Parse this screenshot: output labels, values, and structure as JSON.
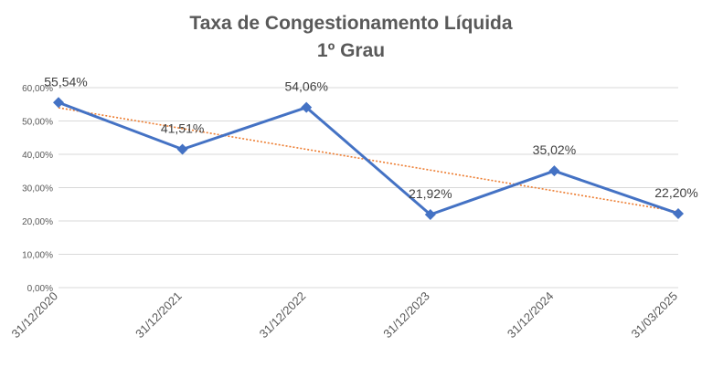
{
  "chart_data": {
    "type": "line",
    "title": "Taxa de Congestionamento Líquida",
    "subtitle": "1º Grau",
    "categories": [
      "31/12/2020",
      "31/12/2021",
      "31/12/2022",
      "31/12/2023",
      "31/12/2024",
      "31/03/2025"
    ],
    "values": [
      55.54,
      41.51,
      54.06,
      21.92,
      35.02,
      22.2
    ],
    "data_labels": [
      "55,54%",
      "41,51%",
      "54,06%",
      "21,92%",
      "35,02%",
      "22,20%"
    ],
    "y_ticks": [
      0,
      10,
      20,
      30,
      40,
      50,
      60
    ],
    "y_tick_labels": [
      "0,00%",
      "10,00%",
      "20,00%",
      "30,00%",
      "40,00%",
      "50,00%",
      "60,00%"
    ],
    "ylim": [
      0,
      60
    ],
    "grid": true,
    "trendline": "linear",
    "colors": {
      "series": "#4472C4",
      "trend": "#ED7D31",
      "grid": "#D9D9D9"
    },
    "legend": "none"
  }
}
